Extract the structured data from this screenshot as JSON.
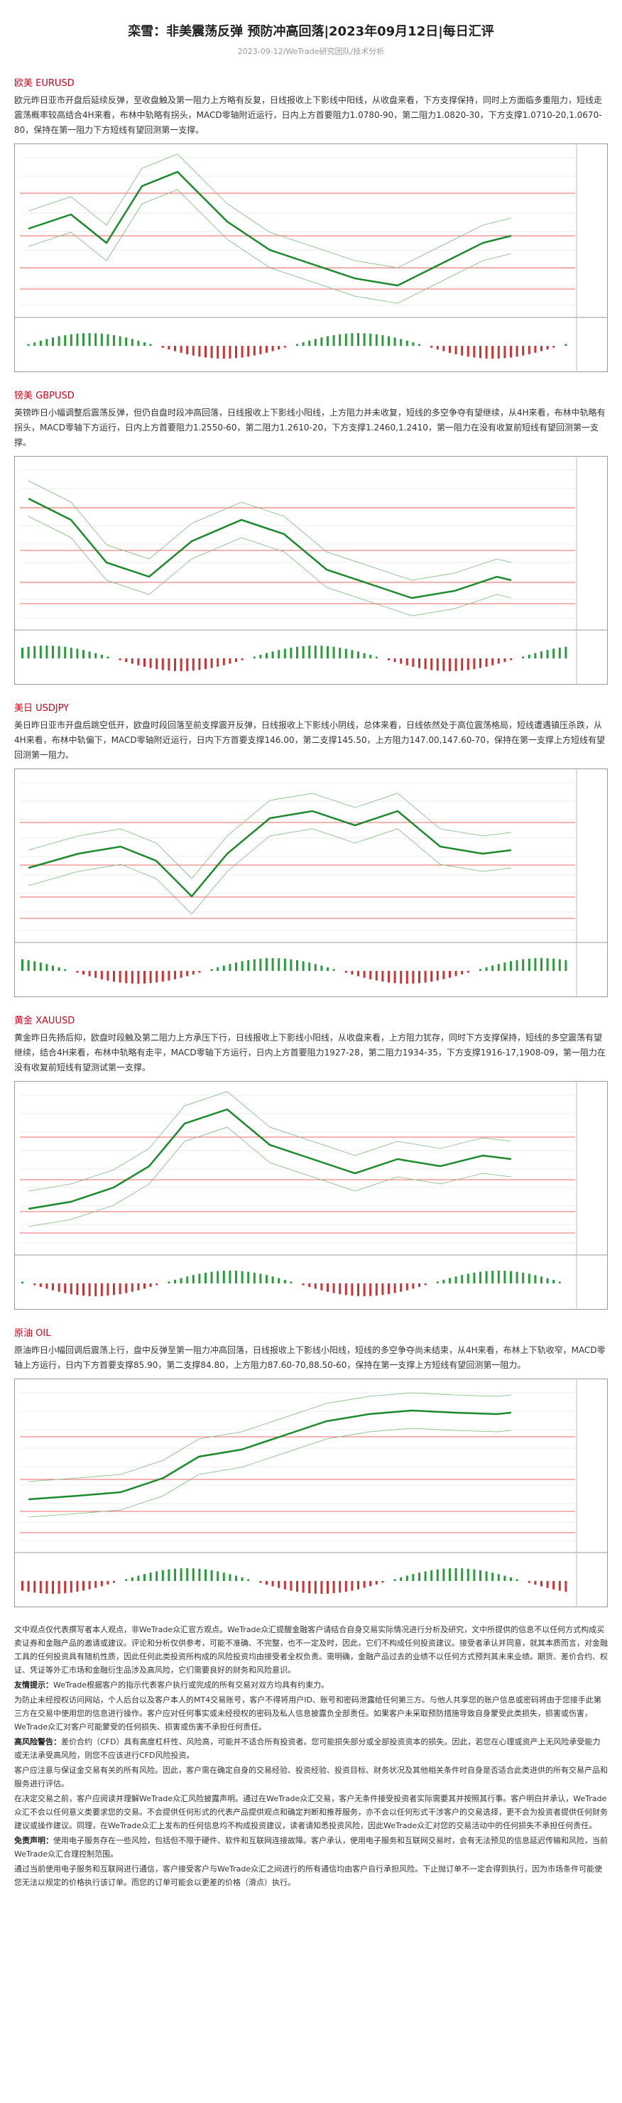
{
  "header": {
    "title": "栾雪：非美震荡反弹 预防冲高回落|2023年09月12日|每日汇评",
    "date_line": "2023-09-12/WeTrade研究团队/技术分析"
  },
  "sections": [
    {
      "heading": "欧美 EURUSD",
      "body": "欧元昨日亚市开盘后延续反弹，至收盘触及第一阻力上方略有反复，日线报收上下影线中阳线，从收盘来看，下方支撑保持，同时上方面临多重阻力，短线走震荡概率较高结合4H来看，布林中轨略有拐头，MACD零轴附近运行，日内上方首要阻力1.0780-90，第二阻力1.0820-30，下方支撑1.0710-20,1.0670-80，保持在第一阻力下方短线有望回测第一支撑。"
    },
    {
      "heading": "镑美 GBPUSD",
      "body": "英镑昨日小幅调整后震荡反弹，但仍自盘时段冲高回落，日线报收上下影线小阳线，上方阻力并未收复，短线的多空争夺有望继续，从4H来看，布林中轨略有拐头，MACD零轴下方运行，日内上方首要阻力1.2550-60，第二阻力1.2610-20，下方支撑1.2460,1.2410，第一阻力在没有收复前短线有望回测第一支撑。"
    },
    {
      "heading": "美日 USDJPY",
      "body": "美日昨日亚市开盘后跳空低开，欧盘时段回落至前支撑震开反弹，日线报收上下影线小阴线，总体来看，日线依然处于高位震荡格局，短线遭遇镇压杀跌，从4H来看，布林中轨偏下，MACD零轴附近运行，日内下方首要支撑146.00，第二支撑145.50，上方阻力147.00,147.60-70，保持在第一支撑上方短线有望回测第一阻力。"
    },
    {
      "heading": "黄金 XAUUSD",
      "body": "黄金昨日先扬后抑，欧盘时段触及第二阻力上方承压下行，日线报收上下影线小阳线，从收盘来看，上方阻力犹存，同时下方支撑保持，短线的多空震荡有望继续，结合4H来看，布林中轨略有走平，MACD零轴下方运行，日内上方首要阻力1927-28，第二阻力1934-35，下方支撑1916-17,1908-09，第一阻力在没有收复前短线有望测试第一支撑。"
    },
    {
      "heading": "原油 OIL",
      "body": "原油昨日小幅回调后震荡上行，盘中反弹至第一阻力冲高回落，日线报收上下影线小阳线，短线的多空争夺尚未结束，从4H来看，布林上下轨收窄，MACD零轴上方运行，日内下方首要支撑85.90，第二支撑84.80，上方阻力87.60-70,88.50-60，保持在第一支撑上方短线有望回测第一阻力。"
    }
  ],
  "disclaimer": [
    {
      "text": "文中观点仅代表撰写者本人观点，非WeTrade众汇官方观点。WeTrade众汇提醒金融客户请结合自身交易实际情况进行分析及研究，文中所提供的信息不以任何方式构成买卖证券和金融产品的邀请或建议。评论和分析仅供参考，可能不准确、不完整，也不一定及时，因此，它们不构成任何投资建议。接受者承认并同意，就其本质而言，对金融工具的任何投资具有随机性质，因此任何此类投资所构成的风险投资均由接受者全权负责。需明确，金融产品过去的业绩不以任何方式预判其未来业绩。期货、差价合约、权证、凭证等外汇市场和金融衍生品涉及高风险，它们需要良好的财务和风险意识。"
    },
    {
      "label": "友情提示：",
      "text": "WeTrade根据客户的指示代表客户执行或完成的所有交易对双方均具有约束力。"
    },
    {
      "text": "为防止未经授权访问网站，个人后台以及客户本人的MT4交易账号，客户不得将用户ID、账号和密码泄露给任何第三方。与他人共享您的账户信息或密码将由于您接手此第三方在交易中使用您的信息进行操作。客户应对任何事实或未经授权的密码及私人信息披露负全部责任。如果客户未采取预防措施导致自身蒙受此类损失，损害或伤害，WeTrade众汇对客户可能蒙受的任何损失、损害或伤害不承担任何责任。"
    },
    {
      "label": "高风险警告：",
      "text": "差价合约（CFD）具有高度杠杆性、风险高，可能并不适合所有投资者。您可能损失部分或全部投资资本的损失。因此，若您在心理或资产上无风险承受能力或无法承受高风险，则您不应该进行CFD风险投资。"
    },
    {
      "text": "客户应注意与保证金交易有关的所有风险。因此，客户需在确定自身的交易经验、投资经验、投资目标、财务状况及其他相关条件时自身是否适合此类进供的所有交易产品和服务进行评估。"
    },
    {
      "text": "在决定交易之前，客户应阅读并理解WeTrade众汇风险披露声明。通过在WeTrade众汇交易，客户无条件接受投资者实际需要其并按照其行事。客户明白并承认，WeTrade众汇不会以任何意义类要求您的交易。不会提供任何形式的代表产品提供观点和确定判断和推荐服务，亦不会以任何形式干涉客户的交易选择，更不会为投资者提供任何财务建议或操作建议。同理，在WeTrade众汇上发布的任何信息均不构成投资建议，读者请知悉投资风险，因此WeTrade众汇对您的交易活动中的任何损失不承担任何责任。"
    },
    {
      "label": "免责声明：",
      "text": "使用电子服务存在一些风险，包括但不限于硬件、软件和互联网连接故障。客户承认，使用电子服务和互联网交易时，会有无法预见的信息延迟传输和风险，当前WeTrade众汇合理控制范围。"
    },
    {
      "text": "通过当前使用电子服务和互联网进行通信，客户接受客户与WeTrade众汇之间进行的所有通信均由客户自行承担风险。下止抛订单不一定会得到执行，因为市场条件可能使您无法以规定的价格执行该订单。而您的订单可能会以更差的价格（滑点）执行。"
    }
  ]
}
